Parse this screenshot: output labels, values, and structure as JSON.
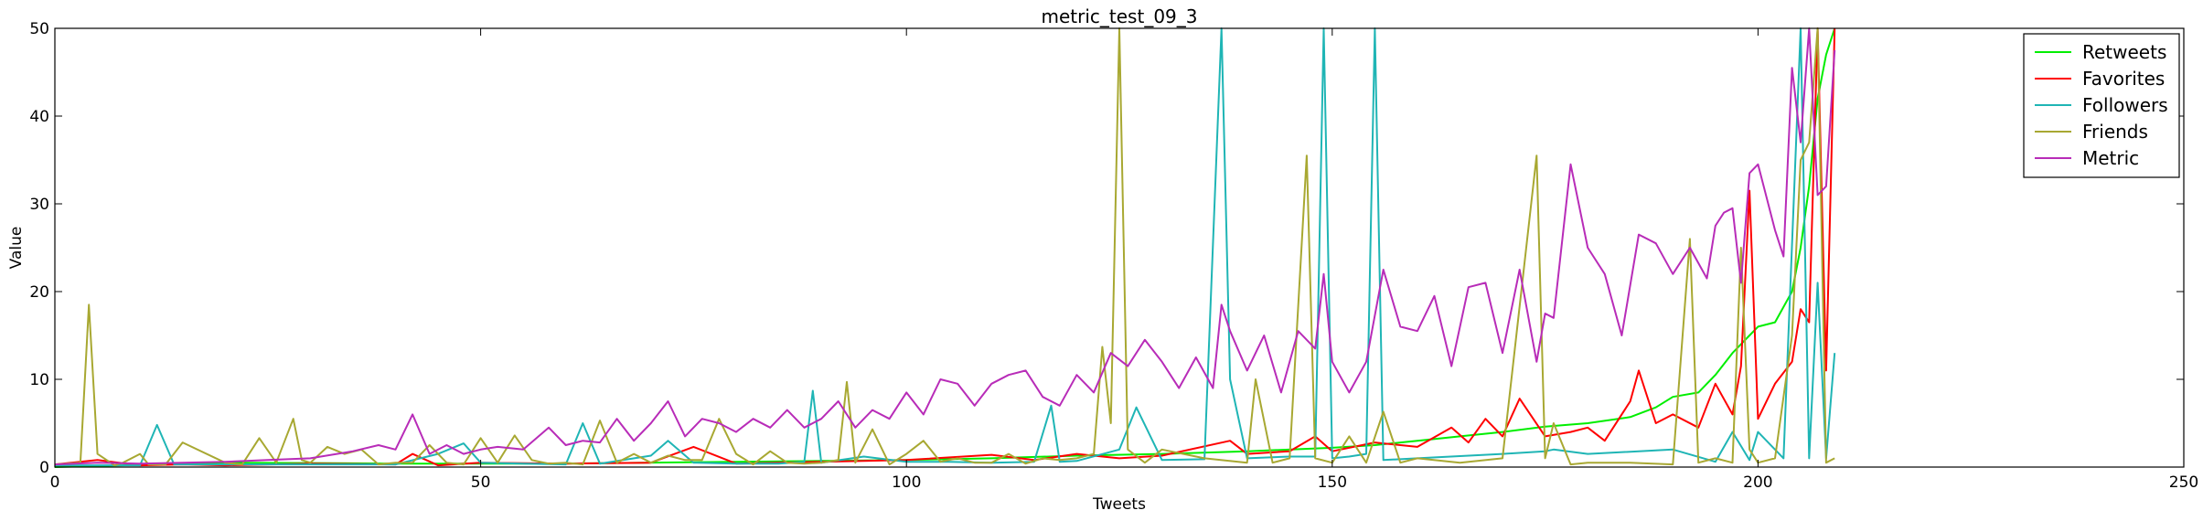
{
  "chart_data": {
    "type": "line",
    "title": "metric_test_09_3",
    "xlabel": "Tweets",
    "ylabel": "Value",
    "xlim": [
      0,
      250
    ],
    "ylim": [
      0,
      50
    ],
    "xticks": [
      0,
      50,
      100,
      150,
      200,
      250
    ],
    "yticks": [
      0,
      10,
      20,
      30,
      40,
      50
    ],
    "grid": false,
    "legend_position": "top-right",
    "series": [
      {
        "name": "Retweets",
        "color": "#00ee00",
        "x": [
          0,
          20,
          40,
          60,
          80,
          100,
          110,
          120,
          130,
          140,
          150,
          155,
          160,
          165,
          170,
          175,
          180,
          185,
          188,
          190,
          193,
          195,
          197,
          199,
          200,
          202,
          204,
          205,
          206,
          207,
          208,
          209
        ],
        "y": [
          0,
          0.5,
          0.4,
          0.4,
          0.6,
          0.8,
          1.0,
          1.3,
          1.5,
          1.8,
          2.2,
          2.5,
          3.0,
          3.5,
          4.0,
          4.6,
          5.0,
          5.7,
          6.8,
          8.0,
          8.5,
          10.5,
          13.0,
          15.0,
          16.0,
          16.5,
          20.0,
          25.0,
          32.0,
          42.0,
          47.0,
          50.0
        ]
      },
      {
        "name": "Favorites",
        "color": "#ff0000",
        "x": [
          0,
          5,
          10,
          15,
          20,
          30,
          40,
          42,
          45,
          50,
          60,
          70,
          75,
          80,
          90,
          100,
          110,
          115,
          120,
          125,
          130,
          138,
          140,
          145,
          148,
          150,
          155,
          160,
          164,
          166,
          168,
          170,
          172,
          175,
          178,
          180,
          182,
          185,
          186,
          188,
          190,
          193,
          195,
          197,
          198,
          199,
          200,
          202,
          204,
          205,
          206,
          207,
          208,
          209
        ],
        "y": [
          0.3,
          0.8,
          0.2,
          0.3,
          0.2,
          0.4,
          0.3,
          1.5,
          0.2,
          0.5,
          0.4,
          0.5,
          2.3,
          0.4,
          0.6,
          0.8,
          1.4,
          0.8,
          1.5,
          1.0,
          1.3,
          3.0,
          1.5,
          1.8,
          3.5,
          1.8,
          2.8,
          2.3,
          4.5,
          2.8,
          5.5,
          3.5,
          7.8,
          3.5,
          4.0,
          4.5,
          3.0,
          7.5,
          11.0,
          5.0,
          6.0,
          4.5,
          9.5,
          6.0,
          11.5,
          31.5,
          5.5,
          9.5,
          12.0,
          18.0,
          16.5,
          50.0,
          11.0,
          50.0
        ]
      },
      {
        "name": "Followers",
        "color": "#1fb5b5",
        "x": [
          0,
          10,
          12,
          14,
          20,
          40,
          45,
          48,
          50,
          55,
          60,
          62,
          64,
          70,
          72,
          75,
          80,
          85,
          88,
          89,
          90,
          95,
          100,
          105,
          110,
          115,
          117,
          118,
          120,
          125,
          127,
          130,
          135,
          137,
          138,
          140,
          145,
          148,
          149,
          150,
          152,
          154,
          155,
          156,
          160,
          170,
          175,
          176,
          180,
          190,
          195,
          197,
          199,
          200,
          203,
          205,
          206,
          207,
          208,
          209
        ],
        "y": [
          0.2,
          0.2,
          4.8,
          0.3,
          0.3,
          0.3,
          1.5,
          2.7,
          0.5,
          0.4,
          0.3,
          5.0,
          0.4,
          1.3,
          3.0,
          0.5,
          0.4,
          0.4,
          0.6,
          8.7,
          0.5,
          1.2,
          0.6,
          0.6,
          0.5,
          0.6,
          7.0,
          0.6,
          0.7,
          2.0,
          6.8,
          0.8,
          0.9,
          50.0,
          10.0,
          1.0,
          1.2,
          1.2,
          50.0,
          1.0,
          1.2,
          1.5,
          50.0,
          0.8,
          1.0,
          1.5,
          1.8,
          2.0,
          1.5,
          2.0,
          0.6,
          4.0,
          0.8,
          4.0,
          1.0,
          50.0,
          1.0,
          21.0,
          1.0,
          13.0
        ]
      },
      {
        "name": "Friends",
        "color": "#a8a832",
        "x": [
          0,
          3,
          4,
          5,
          7,
          8,
          10,
          11,
          13,
          15,
          20,
          22,
          24,
          26,
          28,
          29,
          30,
          32,
          34,
          36,
          38,
          40,
          42,
          44,
          46,
          48,
          50,
          52,
          54,
          56,
          58,
          60,
          62,
          64,
          66,
          68,
          70,
          72,
          74,
          76,
          78,
          80,
          82,
          84,
          86,
          88,
          90,
          92,
          93,
          94,
          96,
          98,
          100,
          102,
          104,
          106,
          108,
          110,
          112,
          114,
          116,
          118,
          120,
          122,
          123,
          124,
          125,
          126,
          128,
          130,
          135,
          140,
          141,
          143,
          145,
          147,
          148,
          150,
          152,
          154,
          156,
          158,
          160,
          165,
          170,
          174,
          175,
          176,
          178,
          180,
          185,
          190,
          192,
          193,
          195,
          197,
          198,
          199,
          200,
          202,
          204,
          205,
          206,
          207,
          208,
          209
        ],
        "y": [
          0.3,
          0.5,
          18.5,
          1.5,
          0.2,
          0.5,
          1.5,
          0.3,
          0.3,
          2.8,
          0.5,
          0.3,
          3.3,
          0.5,
          5.5,
          0.8,
          0.5,
          2.3,
          1.5,
          2.0,
          0.3,
          0.5,
          0.5,
          2.5,
          0.5,
          0.3,
          3.3,
          0.5,
          3.6,
          0.8,
          0.4,
          0.5,
          0.3,
          5.3,
          0.5,
          1.5,
          0.5,
          1.3,
          0.8,
          0.8,
          5.5,
          1.5,
          0.3,
          1.8,
          0.5,
          0.4,
          0.5,
          0.8,
          9.7,
          0.5,
          4.3,
          0.3,
          1.5,
          3.0,
          0.6,
          1.0,
          0.5,
          0.5,
          1.5,
          0.4,
          1.0,
          0.8,
          1.0,
          1.5,
          13.7,
          5.0,
          50.0,
          2.0,
          0.5,
          2.0,
          1.0,
          0.5,
          10.0,
          0.5,
          1.0,
          35.5,
          1.0,
          0.5,
          3.5,
          0.5,
          6.3,
          0.5,
          1.0,
          0.5,
          1.0,
          35.5,
          1.0,
          5.0,
          0.3,
          0.5,
          0.5,
          0.3,
          26.0,
          0.5,
          1.0,
          0.5,
          25.0,
          2.0,
          0.5,
          1.0,
          15.0,
          35.0,
          37.0,
          50.0,
          0.5,
          1.0
        ]
      },
      {
        "name": "Metric",
        "color": "#b82cb8",
        "x": [
          0,
          5,
          10,
          15,
          20,
          25,
          30,
          35,
          38,
          40,
          42,
          44,
          46,
          48,
          50,
          52,
          55,
          58,
          60,
          62,
          64,
          66,
          68,
          70,
          72,
          74,
          76,
          78,
          80,
          82,
          84,
          86,
          88,
          90,
          92,
          94,
          96,
          98,
          100,
          102,
          104,
          106,
          108,
          110,
          112,
          114,
          116,
          118,
          120,
          122,
          124,
          126,
          128,
          130,
          132,
          134,
          136,
          137,
          138,
          140,
          142,
          144,
          146,
          148,
          149,
          150,
          152,
          154,
          156,
          158,
          160,
          162,
          164,
          166,
          168,
          170,
          172,
          174,
          175,
          176,
          178,
          180,
          182,
          184,
          186,
          188,
          190,
          192,
          194,
          195,
          196,
          197,
          198,
          199,
          200,
          202,
          203,
          204,
          205,
          206,
          207,
          208,
          209
        ],
        "y": [
          0.3,
          0.5,
          0.4,
          0.5,
          0.6,
          0.8,
          1.0,
          1.8,
          2.5,
          2.0,
          6.0,
          1.5,
          2.5,
          1.5,
          2.0,
          2.3,
          2.0,
          4.5,
          2.5,
          3.0,
          2.8,
          5.5,
          3.0,
          5.0,
          7.5,
          3.5,
          5.5,
          5.0,
          4.0,
          5.5,
          4.5,
          6.5,
          4.5,
          5.5,
          7.5,
          4.5,
          6.5,
          5.5,
          8.5,
          6.0,
          10.0,
          9.5,
          7.0,
          9.5,
          10.5,
          11.0,
          8.0,
          7.0,
          10.5,
          8.5,
          13.0,
          11.5,
          14.5,
          12.0,
          9.0,
          12.5,
          9.0,
          18.5,
          15.5,
          11.0,
          15.0,
          8.5,
          15.5,
          13.5,
          22.0,
          12.0,
          8.5,
          12.0,
          22.5,
          16.0,
          15.5,
          19.5,
          11.5,
          20.5,
          21.0,
          13.0,
          22.5,
          12.0,
          17.5,
          17.0,
          34.5,
          25.0,
          22.0,
          15.0,
          26.5,
          25.5,
          22.0,
          25.0,
          21.5,
          27.5,
          29.0,
          29.5,
          21.0,
          33.5,
          34.5,
          27.0,
          24.0,
          45.5,
          37.0,
          50.0,
          31.0,
          32.0,
          47.5
        ]
      }
    ]
  }
}
